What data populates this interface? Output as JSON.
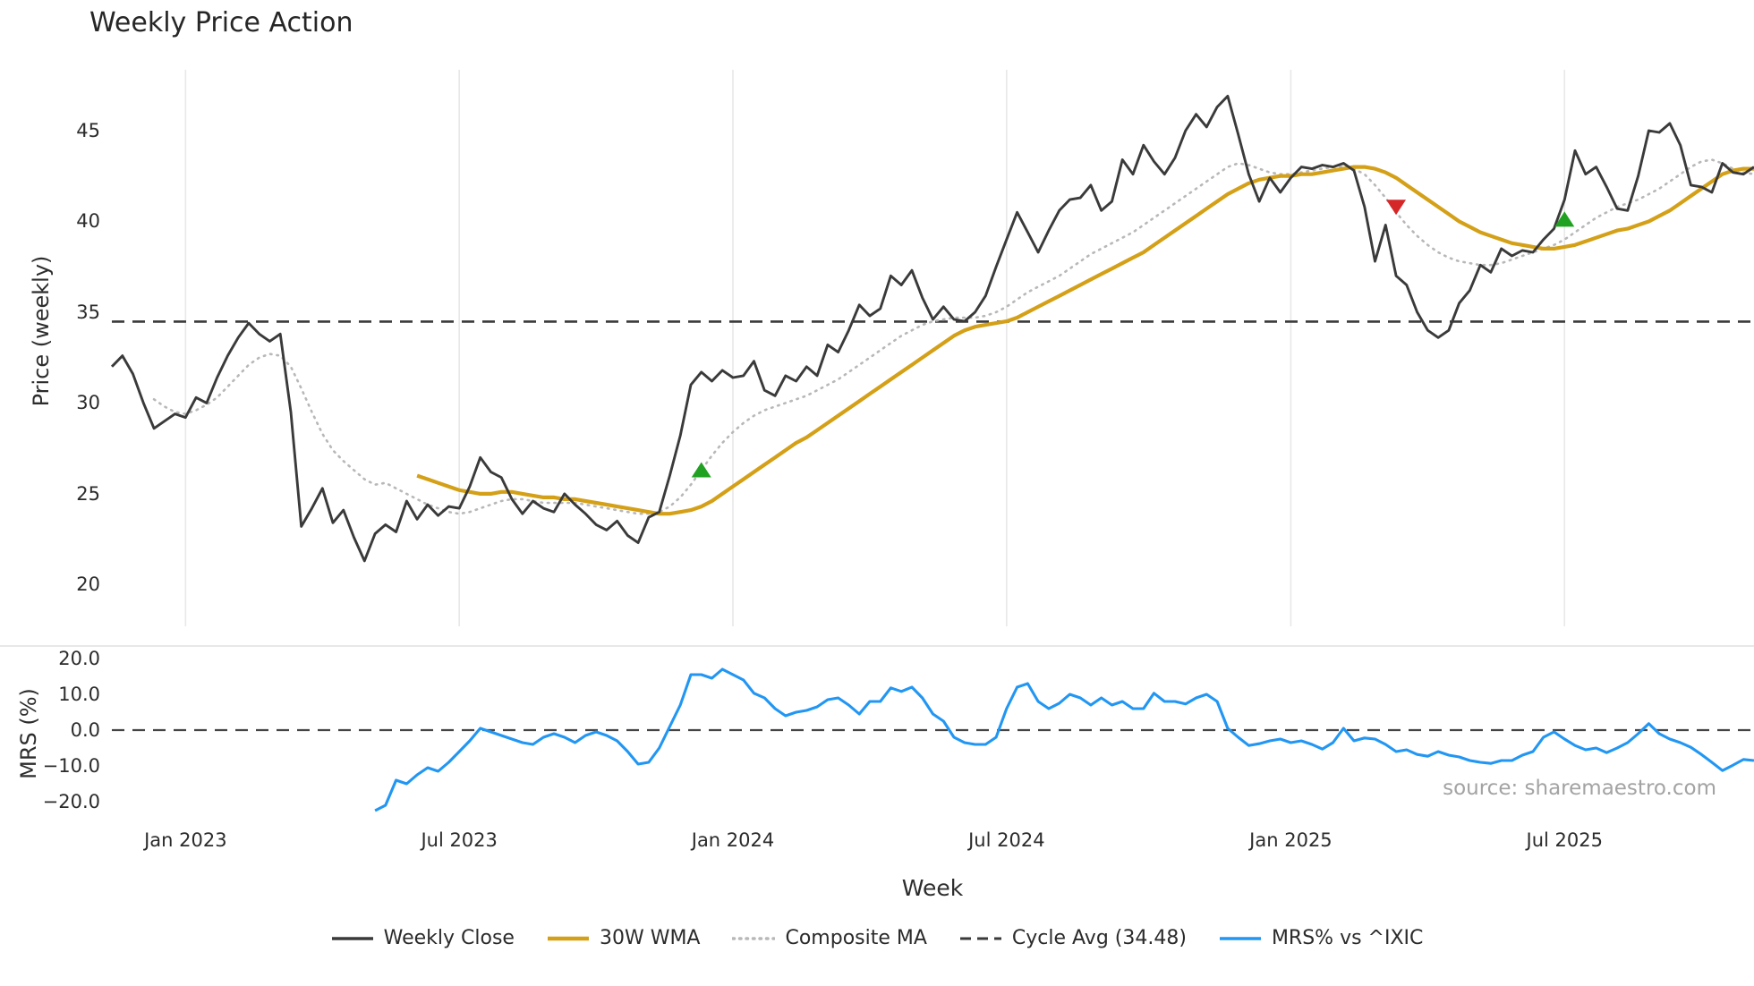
{
  "title": "Weekly Price Action",
  "source": "source: sharemaestro.com",
  "colors": {
    "weekly_close": "#3a3a3a",
    "wma_30": "#d4a017",
    "composite_ma": "#b8b8b8",
    "cycle_avg": "#3a3a3a",
    "mrs": "#2196f3",
    "buy_marker": "#21a121",
    "sell_marker": "#d62728",
    "gridline": "#e8e8e8"
  },
  "legend": [
    {
      "label": "Weekly Close",
      "swatch": "solid",
      "color": "#3a3a3a",
      "width": 3.5
    },
    {
      "label": "30W WMA",
      "swatch": "solid",
      "color": "#d4a017",
      "width": 4.5
    },
    {
      "label": "Composite MA",
      "swatch": "dotted",
      "color": "#b8b8b8",
      "width": 3.5
    },
    {
      "label": "Cycle Avg (34.48)",
      "swatch": "dashed",
      "color": "#3a3a3a",
      "width": 3
    },
    {
      "label": "MRS% vs ^IXIC",
      "swatch": "solid",
      "color": "#2196f3",
      "width": 3.5
    }
  ],
  "chart_data": {
    "type": "line",
    "title": "Weekly Price Action",
    "xlabel": "Week",
    "n_points": 157,
    "x_tick_indices": [
      7,
      33,
      59,
      85,
      112,
      138
    ],
    "x_tick_labels": [
      "Jan 2023",
      "Jul 2023",
      "Jan 2024",
      "Jul 2024",
      "Jan 2025",
      "Jul 2025"
    ],
    "panels": [
      {
        "name": "price",
        "ylabel": "Price (weekly)",
        "ylim": [
          17.7,
          48.35
        ],
        "yticks": [
          45,
          40,
          35,
          30,
          25,
          20
        ],
        "hline": {
          "label": "Cycle Avg (34.48)",
          "value": 34.48,
          "style": "dashed",
          "color": "#3a3a3a"
        },
        "series": [
          {
            "name": "Composite MA",
            "color": "#b8b8b8",
            "style": "dotted",
            "values": [
              null,
              null,
              null,
              null,
              30.2,
              29.8,
              29.5,
              29.4,
              29.6,
              29.9,
              30.3,
              30.9,
              31.5,
              32.1,
              32.5,
              32.7,
              32.6,
              32.0,
              30.8,
              29.5,
              28.3,
              27.4,
              26.8,
              26.3,
              25.8,
              25.5,
              25.6,
              25.3,
              25.0,
              24.7,
              24.4,
              24.2,
              24.0,
              23.9,
              24.0,
              24.2,
              24.4,
              24.6,
              24.7,
              24.7,
              24.6,
              24.5,
              24.5,
              24.5,
              24.5,
              24.4,
              24.3,
              24.2,
              24.1,
              24.0,
              23.9,
              23.9,
              24.0,
              24.3,
              24.8,
              25.5,
              26.3,
              27.1,
              27.8,
              28.4,
              28.9,
              29.3,
              29.6,
              29.8,
              30.0,
              30.2,
              30.4,
              30.7,
              31.0,
              31.3,
              31.7,
              32.1,
              32.5,
              32.9,
              33.3,
              33.7,
              34.0,
              34.3,
              34.5,
              34.6,
              34.7,
              34.7,
              34.7,
              34.8,
              35.0,
              35.3,
              35.7,
              36.1,
              36.4,
              36.7,
              37.0,
              37.4,
              37.8,
              38.2,
              38.5,
              38.8,
              39.1,
              39.4,
              39.8,
              40.2,
              40.6,
              41.0,
              41.4,
              41.8,
              42.2,
              42.6,
              43.0,
              43.2,
              43.1,
              42.9,
              42.7,
              42.6,
              42.6,
              42.7,
              42.8,
              42.9,
              43.0,
              43.0,
              42.9,
              42.6,
              42.0,
              41.3,
              40.5,
              39.8,
              39.2,
              38.7,
              38.3,
              38.0,
              37.8,
              37.7,
              37.6,
              37.6,
              37.7,
              37.9,
              38.1,
              38.3,
              38.5,
              38.7,
              39.0,
              39.4,
              39.8,
              40.2,
              40.5,
              40.8,
              41.0,
              41.2,
              41.5,
              41.8,
              42.2,
              42.6,
              43.0,
              43.3,
              43.4,
              43.2,
              42.9,
              42.7,
              42.6
            ]
          },
          {
            "name": "30W WMA",
            "color": "#d4a017",
            "style": "solid",
            "values": [
              null,
              null,
              null,
              null,
              null,
              null,
              null,
              null,
              null,
              null,
              null,
              null,
              null,
              null,
              null,
              null,
              null,
              null,
              null,
              null,
              null,
              null,
              null,
              null,
              null,
              null,
              null,
              null,
              null,
              26.0,
              25.8,
              25.6,
              25.4,
              25.2,
              25.1,
              25.0,
              25.0,
              25.1,
              25.1,
              25.0,
              24.9,
              24.8,
              24.8,
              24.7,
              24.7,
              24.6,
              24.5,
              24.4,
              24.3,
              24.2,
              24.1,
              24.0,
              23.9,
              23.9,
              24.0,
              24.1,
              24.3,
              24.6,
              25.0,
              25.4,
              25.8,
              26.2,
              26.6,
              27.0,
              27.4,
              27.8,
              28.1,
              28.5,
              28.9,
              29.3,
              29.7,
              30.1,
              30.5,
              30.9,
              31.3,
              31.7,
              32.1,
              32.5,
              32.9,
              33.3,
              33.7,
              34.0,
              34.2,
              34.3,
              34.4,
              34.5,
              34.7,
              35.0,
              35.3,
              35.6,
              35.9,
              36.2,
              36.5,
              36.8,
              37.1,
              37.4,
              37.7,
              38.0,
              38.3,
              38.7,
              39.1,
              39.5,
              39.9,
              40.3,
              40.7,
              41.1,
              41.5,
              41.8,
              42.1,
              42.3,
              42.4,
              42.5,
              42.5,
              42.6,
              42.6,
              42.7,
              42.8,
              42.9,
              43.0,
              43.0,
              42.9,
              42.7,
              42.4,
              42.0,
              41.6,
              41.2,
              40.8,
              40.4,
              40.0,
              39.7,
              39.4,
              39.2,
              39.0,
              38.8,
              38.7,
              38.6,
              38.5,
              38.5,
              38.6,
              38.7,
              38.9,
              39.1,
              39.3,
              39.5,
              39.6,
              39.8,
              40.0,
              40.3,
              40.6,
              41.0,
              41.4,
              41.8,
              42.2,
              42.6,
              42.8,
              42.9,
              42.9
            ]
          },
          {
            "name": "Weekly Close",
            "color": "#3a3a3a",
            "style": "solid",
            "values": [
              32.0,
              32.6,
              31.6,
              30.0,
              28.6,
              29.0,
              29.4,
              29.2,
              30.3,
              30.0,
              31.4,
              32.6,
              33.6,
              34.4,
              33.8,
              33.4,
              33.8,
              29.5,
              23.2,
              24.2,
              25.3,
              23.4,
              24.1,
              22.6,
              21.3,
              22.8,
              23.3,
              22.9,
              24.6,
              23.6,
              24.4,
              23.8,
              24.3,
              24.2,
              25.4,
              27.0,
              26.2,
              25.9,
              24.7,
              23.9,
              24.6,
              24.2,
              24.0,
              25.0,
              24.4,
              23.9,
              23.3,
              23.0,
              23.5,
              22.7,
              22.3,
              23.7,
              24.0,
              26.0,
              28.2,
              31.0,
              31.7,
              31.2,
              31.8,
              31.4,
              31.5,
              32.3,
              30.7,
              30.4,
              31.5,
              31.2,
              32.0,
              31.5,
              33.2,
              32.8,
              34.0,
              35.4,
              34.8,
              35.2,
              37.0,
              36.5,
              37.3,
              35.8,
              34.6,
              35.3,
              34.6,
              34.5,
              35.0,
              35.9,
              37.5,
              39.0,
              40.5,
              39.4,
              38.3,
              39.5,
              40.6,
              41.2,
              41.3,
              42.0,
              40.6,
              41.1,
              43.4,
              42.6,
              44.2,
              43.3,
              42.6,
              43.5,
              45.0,
              45.9,
              45.2,
              46.3,
              46.9,
              44.8,
              42.6,
              41.1,
              42.4,
              41.6,
              42.4,
              43.0,
              42.9,
              43.1,
              43.0,
              43.2,
              42.8,
              40.8,
              37.8,
              39.8,
              37.0,
              36.5,
              35.0,
              34.0,
              33.6,
              34.0,
              35.5,
              36.2,
              37.6,
              37.2,
              38.5,
              38.1,
              38.4,
              38.3,
              39.0,
              39.6,
              41.2,
              43.9,
              42.6,
              43.0,
              41.9,
              40.7,
              40.6,
              42.5,
              45.0,
              44.9,
              45.4,
              44.2,
              42.0,
              41.9,
              41.6,
              43.2,
              42.7,
              42.6,
              43.0
            ]
          }
        ],
        "markers": [
          {
            "name": "buy-signal",
            "shape": "triangle-up",
            "color": "#21a121",
            "index": 56,
            "price": 26.3
          },
          {
            "name": "sell-signal",
            "shape": "triangle-down",
            "color": "#d62728",
            "index": 122,
            "price": 40.8
          },
          {
            "name": "buy-signal",
            "shape": "triangle-up",
            "color": "#21a121",
            "index": 138,
            "price": 40.1
          }
        ]
      },
      {
        "name": "mrs",
        "ylabel": "MRS (%)",
        "ylim": [
          -24.75,
          23.5
        ],
        "yticks": [
          20,
          10,
          0,
          -10,
          -20
        ],
        "ytick_labels": [
          "20.0",
          "10.0",
          "0.0",
          "−10.0",
          "−20.0"
        ],
        "hline": {
          "label": "zero-line",
          "value": 0,
          "style": "dashed",
          "color": "#444444"
        },
        "series": [
          {
            "name": "MRS% vs ^IXIC",
            "color": "#2196f3",
            "style": "solid",
            "values": [
              null,
              null,
              null,
              null,
              null,
              null,
              null,
              null,
              null,
              null,
              null,
              null,
              null,
              null,
              null,
              null,
              null,
              null,
              null,
              null,
              null,
              null,
              null,
              null,
              null,
              -22.5,
              -21.0,
              -14.0,
              -15.0,
              -12.5,
              -10.5,
              -11.5,
              -9.0,
              -6.0,
              -3.0,
              0.5,
              -0.5,
              -1.5,
              -2.5,
              -3.5,
              -4.0,
              -2.0,
              -1.0,
              -2.0,
              -3.5,
              -1.5,
              -0.5,
              -1.5,
              -3.0,
              -6.0,
              -9.5,
              -9.0,
              -5.0,
              1.0,
              7.0,
              15.5,
              15.5,
              14.5,
              17.0,
              15.5,
              14.0,
              10.3,
              9.0,
              6.0,
              4.0,
              5.0,
              5.5,
              6.5,
              8.5,
              9.0,
              7.0,
              4.5,
              8.0,
              8.0,
              11.8,
              10.8,
              12.0,
              9.0,
              4.5,
              2.5,
              -2.0,
              -3.5,
              -4.0,
              -4.0,
              -2.0,
              6.0,
              12.0,
              13.0,
              8.0,
              6.0,
              7.5,
              10.0,
              9.0,
              7.0,
              9.0,
              7.0,
              8.0,
              6.0,
              6.0,
              10.3,
              8.0,
              8.0,
              7.3,
              9.0,
              10.0,
              8.0,
              0.5,
              -2.0,
              -4.3,
              -3.8,
              -3.0,
              -2.5,
              -3.5,
              -3.0,
              -4.0,
              -5.3,
              -3.5,
              0.5,
              -3.0,
              -2.2,
              -2.5,
              -4.0,
              -6.0,
              -5.5,
              -6.8,
              -7.3,
              -6.0,
              -7.0,
              -7.5,
              -8.5,
              -9.0,
              -9.3,
              -8.5,
              -8.5,
              -7.0,
              -6.0,
              -2.0,
              -0.5,
              -2.5,
              -4.3,
              -5.5,
              -5.0,
              -6.3,
              -5.0,
              -3.5,
              -1.0,
              1.8,
              -1.0,
              -2.5,
              -3.5,
              -4.8,
              -6.8,
              -9.0,
              -11.3,
              -9.8,
              -8.2,
              -8.5
            ]
          }
        ]
      }
    ]
  }
}
